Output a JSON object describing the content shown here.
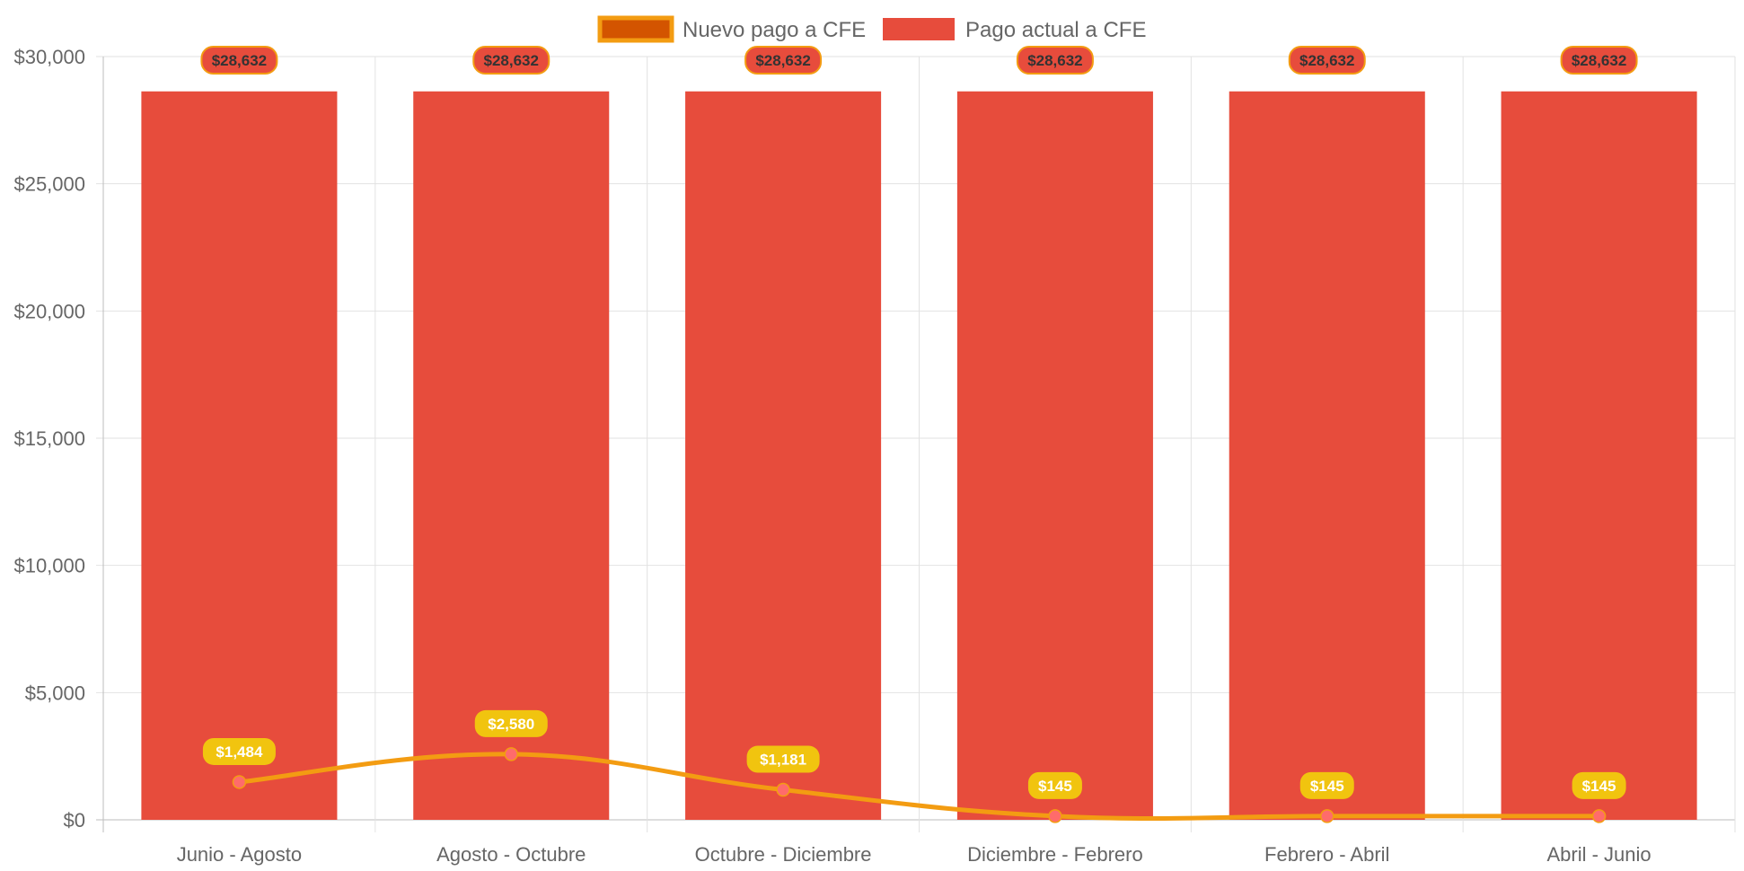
{
  "chart_data": {
    "type": "bar",
    "categories": [
      "Junio - Agosto",
      "Agosto - Octubre",
      "Octubre - Diciembre",
      "Diciembre - Febrero",
      "Febrero - Abril",
      "Abril - Junio"
    ],
    "series": [
      {
        "name": "Nuevo pago a CFE",
        "type": "line",
        "values": [
          1484,
          2580,
          1181,
          145,
          145,
          145
        ],
        "labels": [
          "$1,484",
          "$2,580",
          "$1,181",
          "$145",
          "$145",
          "$145"
        ],
        "color": "#f39c12",
        "fill_color": "#d35400",
        "point_color": "#ff6b6b",
        "label_bg": "#f1c40f"
      },
      {
        "name": "Pago actual a CFE",
        "type": "bar",
        "values": [
          28632,
          28632,
          28632,
          28632,
          28632,
          28632
        ],
        "labels": [
          "$28,632",
          "$28,632",
          "$28,632",
          "$28,632",
          "$28,632",
          "$28,632"
        ],
        "color": "#e74c3c",
        "label_border": "#f39c12"
      }
    ],
    "ylim": [
      0,
      30000
    ],
    "yticks": [
      0,
      5000,
      10000,
      15000,
      20000,
      25000,
      30000
    ],
    "ytick_labels": [
      "$0",
      "$5,000",
      "$10,000",
      "$15,000",
      "$20,000",
      "$25,000",
      "$30,000"
    ],
    "title": "",
    "xlabel": "",
    "ylabel": "",
    "grid": true,
    "legend_position": "top-center"
  }
}
